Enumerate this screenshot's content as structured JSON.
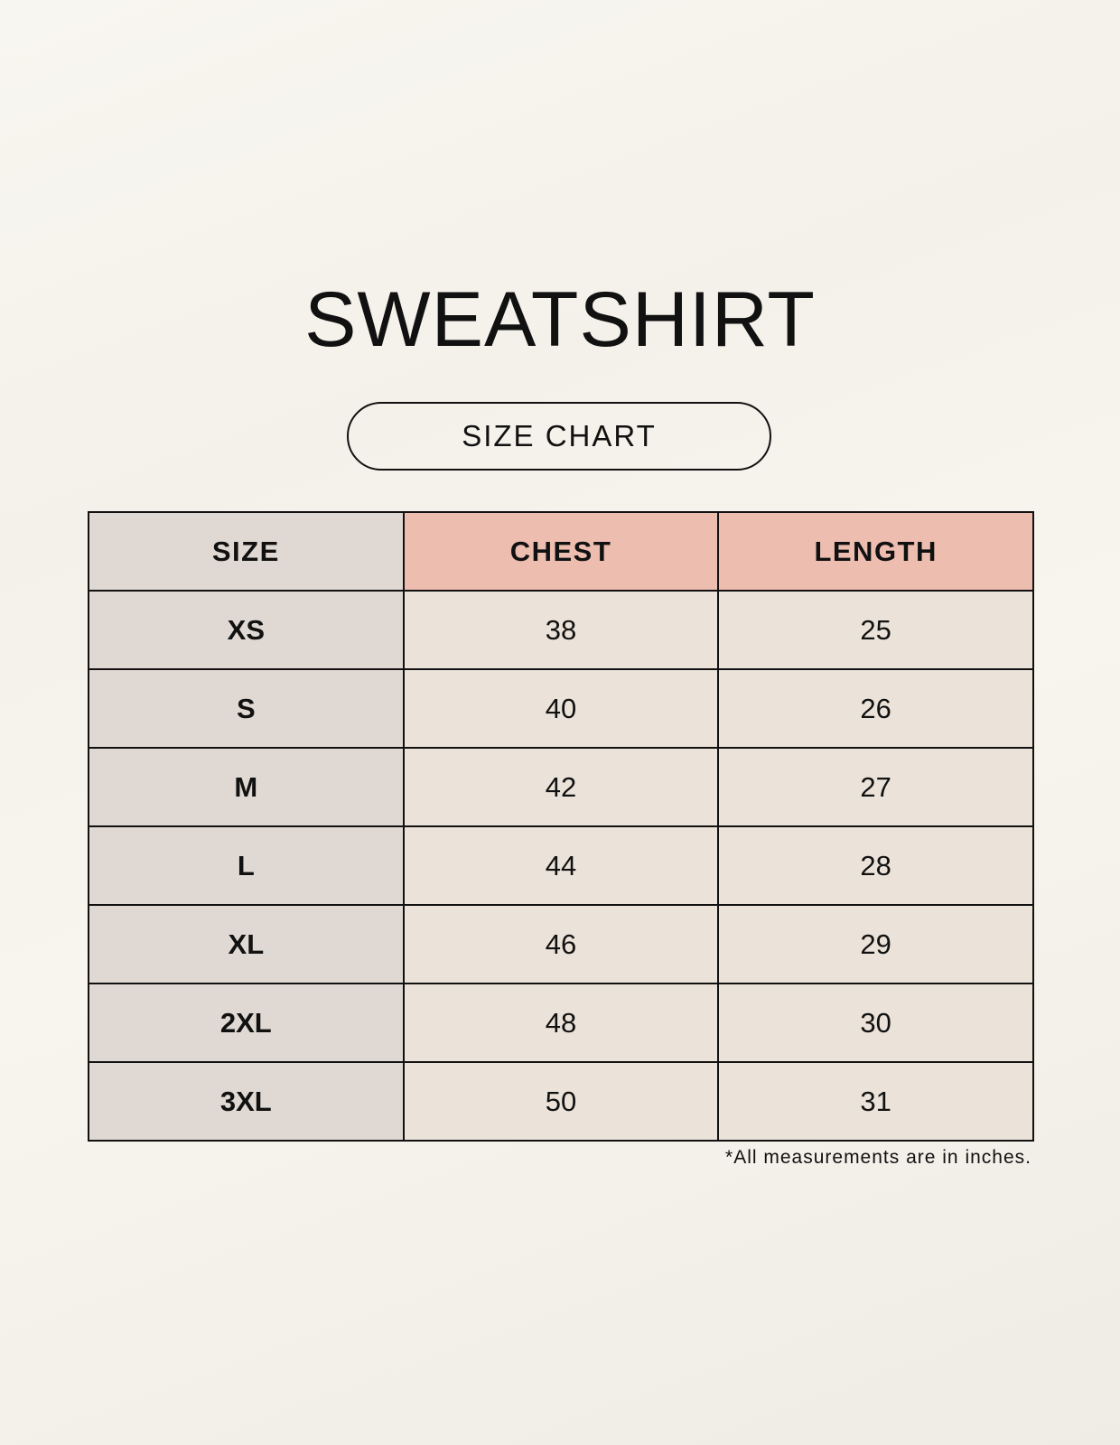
{
  "title": "SWEATSHIRT",
  "subtitle": "SIZE CHART",
  "table": {
    "headers": [
      "SIZE",
      "CHEST",
      "LENGTH"
    ],
    "rows": [
      [
        "XS",
        "38",
        "25"
      ],
      [
        "S",
        "40",
        "26"
      ],
      [
        "M",
        "42",
        "27"
      ],
      [
        "L",
        "44",
        "28"
      ],
      [
        "XL",
        "46",
        "29"
      ],
      [
        "2XL",
        "48",
        "30"
      ],
      [
        "3XL",
        "50",
        "31"
      ]
    ]
  },
  "note": "*All measurements are in inches.",
  "colors": {
    "size_column": "#e0d9d3",
    "measure_header": "#edbdaf",
    "cells": "#ebe3d9"
  }
}
